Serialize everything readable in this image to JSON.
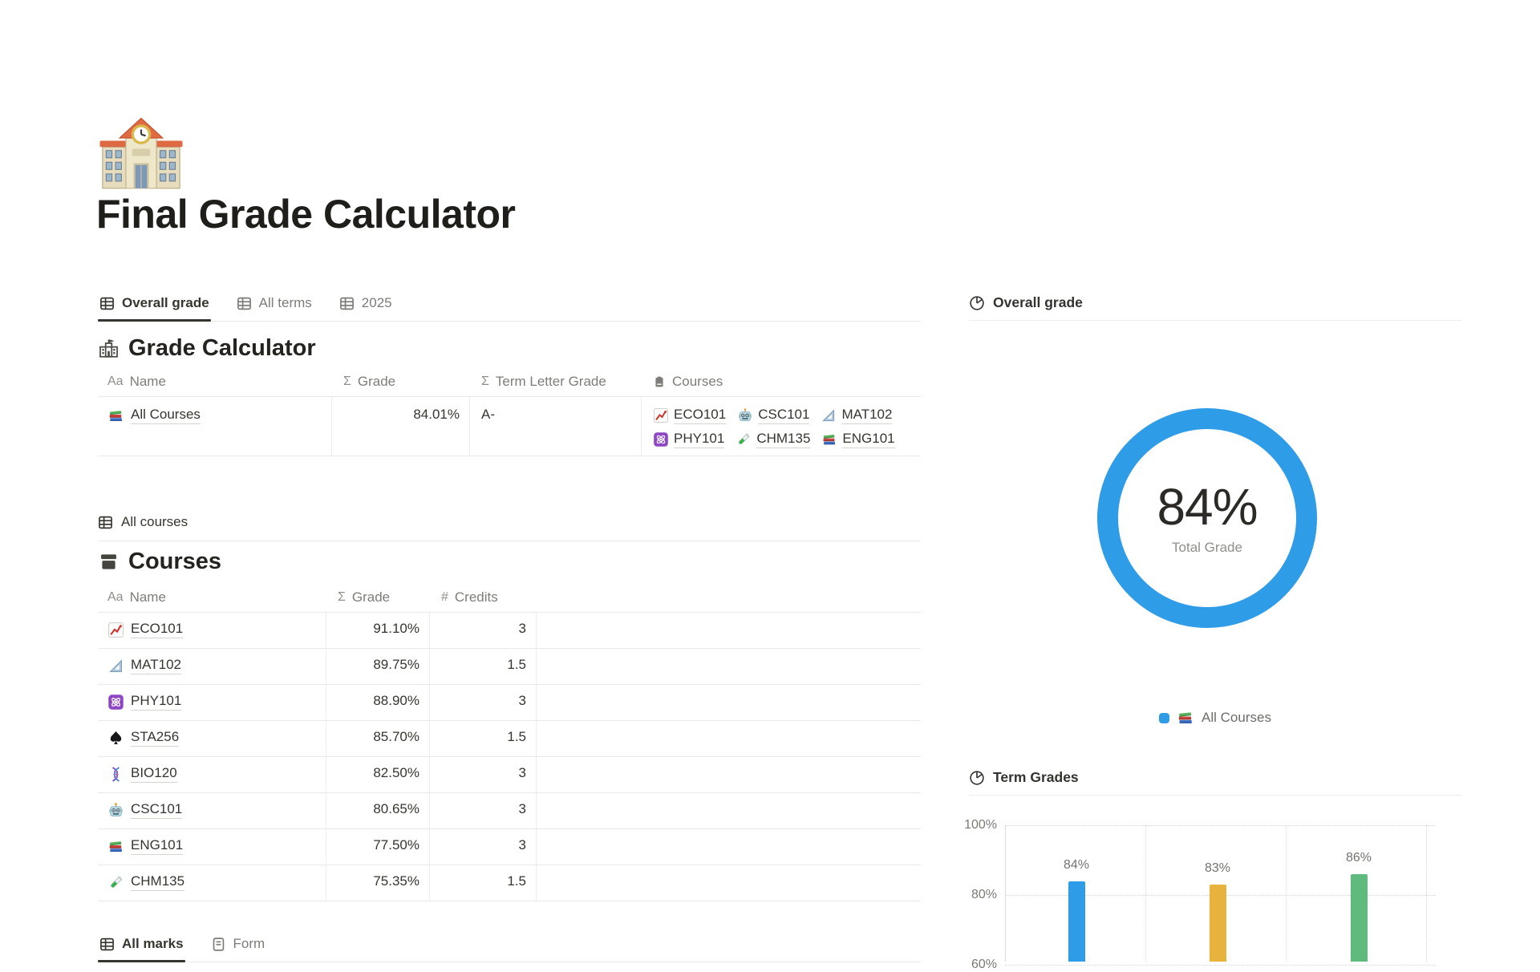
{
  "page": {
    "icon": "school-icon",
    "title": "Final Grade Calculator"
  },
  "accent_color": "#2f9ce8",
  "left": {
    "view_tabs": [
      {
        "label": "Overall grade",
        "icon": "table-icon",
        "active": true
      },
      {
        "label": "All terms",
        "icon": "table-icon",
        "active": false
      },
      {
        "label": "2025",
        "icon": "table-icon",
        "active": false
      }
    ],
    "grade_calculator": {
      "icon": "school-building-icon",
      "title": "Grade Calculator",
      "columns": [
        {
          "icon": "text-property-icon",
          "glyph": "Aa",
          "label": "Name"
        },
        {
          "icon": "formula-property-icon",
          "glyph": "Σ",
          "label": "Grade"
        },
        {
          "icon": "formula-property-icon",
          "glyph": "Σ",
          "label": "Term Letter Grade"
        },
        {
          "icon": "relation-property-icon",
          "glyph": "",
          "label": "Courses"
        }
      ],
      "row": {
        "name": "All Courses",
        "name_icon": "books-icon",
        "grade": "84.01%",
        "term_letter_grade": "A-",
        "courses": [
          {
            "label": "ECO101",
            "icon": "chart-increasing-icon"
          },
          {
            "label": "CSC101",
            "icon": "robot-icon"
          },
          {
            "label": "MAT102",
            "icon": "triangle-ruler-icon"
          },
          {
            "label": "PHY101",
            "icon": "atom-icon"
          },
          {
            "label": "CHM135",
            "icon": "test-tube-icon"
          },
          {
            "label": "ENG101",
            "icon": "books-icon"
          }
        ]
      }
    },
    "courses_view_tab": {
      "label": "All courses",
      "icon": "table-icon"
    },
    "courses": {
      "icon": "archive-icon",
      "title": "Courses",
      "columns": [
        {
          "icon": "text-property-icon",
          "glyph": "Aa",
          "label": "Name"
        },
        {
          "icon": "formula-property-icon",
          "glyph": "Σ",
          "label": "Grade"
        },
        {
          "icon": "number-property-icon",
          "glyph": "#",
          "label": "Credits"
        },
        {
          "icon": "",
          "glyph": "",
          "label": ""
        }
      ],
      "rows": [
        {
          "name": "ECO101",
          "icon": "chart-increasing-icon",
          "grade": "91.10%",
          "credits": "3"
        },
        {
          "name": "MAT102",
          "icon": "triangle-ruler-icon",
          "grade": "89.75%",
          "credits": "1.5"
        },
        {
          "name": "PHY101",
          "icon": "atom-icon",
          "grade": "88.90%",
          "credits": "3"
        },
        {
          "name": "STA256",
          "icon": "spade-icon",
          "grade": "85.70%",
          "credits": "1.5"
        },
        {
          "name": "BIO120",
          "icon": "dna-icon",
          "grade": "82.50%",
          "credits": "3"
        },
        {
          "name": "CSC101",
          "icon": "robot-icon",
          "grade": "80.65%",
          "credits": "3"
        },
        {
          "name": "ENG101",
          "icon": "books-icon",
          "grade": "77.50%",
          "credits": "3"
        },
        {
          "name": "CHM135",
          "icon": "test-tube-icon",
          "grade": "75.35%",
          "credits": "1.5"
        }
      ]
    },
    "bottom_tabs": [
      {
        "label": "All marks",
        "icon": "table-icon",
        "active": true
      },
      {
        "label": "Form",
        "icon": "form-icon",
        "active": false
      }
    ]
  },
  "right": {
    "overall_grade": {
      "header": "Overall grade",
      "header_icon": "pie-chart-icon",
      "donut_value": "84%",
      "donut_sublabel": "Total Grade",
      "legend_label": "All Courses",
      "legend_icon": "books-icon",
      "legend_color": "#2f9ce8"
    },
    "term_grades": {
      "header": "Term Grades",
      "header_icon": "pie-chart-icon"
    }
  },
  "chart_data": [
    {
      "type": "pie",
      "subtype": "donut",
      "title": "Overall grade",
      "series": [
        {
          "name": "All Courses",
          "value": 84
        }
      ],
      "center_label": "84%",
      "center_sublabel": "Total Grade",
      "unit": "%",
      "colors": [
        "#2f9ce8"
      ],
      "legend_entries": [
        "All Courses"
      ],
      "legend_position": "bottom"
    },
    {
      "type": "bar",
      "title": "Term Grades",
      "categories": [
        "",
        "",
        ""
      ],
      "values": [
        84,
        83,
        86
      ],
      "bar_labels": [
        "84%",
        "83%",
        "86%"
      ],
      "bar_colors": [
        "#2f9ce8",
        "#e8b33c",
        "#5fba7d"
      ],
      "ytick_labels": [
        "100%",
        "80%",
        "60%"
      ],
      "ylim_visible": [
        60,
        100
      ],
      "grid": "dotted",
      "legend_position": "none",
      "note_visible_region": "bottom of chart cut off by viewport"
    }
  ]
}
